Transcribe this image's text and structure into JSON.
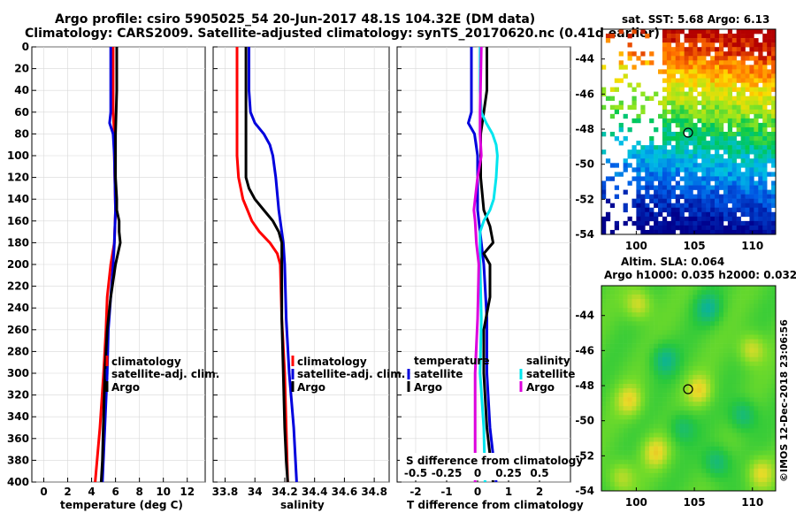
{
  "title": {
    "line1": "Argo profile: csiro 5905025_54 20-Jun-2017 48.1S 104.32E (DM data)",
    "line2": "Climatology: CARS2009. Satellite-adjusted climatology: synTS_20170620.nc (0.41d earlier)"
  },
  "colors": {
    "climatology": "#ff0000",
    "satellite": "#0000dd",
    "argo": "#000000",
    "sat_salinity": "#00e5ee",
    "argo_salinity": "#dd00dd"
  },
  "chart_data": [
    {
      "type": "line",
      "id": "temperature",
      "xlabel": "temperature (deg C)",
      "ylabel": "depth",
      "xlim": [
        -1,
        13.5
      ],
      "ylim": [
        400,
        0
      ],
      "xticks": [
        "0",
        "2",
        "4",
        "6",
        "8",
        "10",
        "12"
      ],
      "xtick_values": [
        0,
        2,
        4,
        6,
        8,
        10,
        12
      ],
      "yticks": [
        "0",
        "20",
        "40",
        "60",
        "80",
        "100",
        "120",
        "140",
        "160",
        "180",
        "200",
        "220",
        "240",
        "260",
        "280",
        "300",
        "320",
        "340",
        "360",
        "380",
        "400"
      ],
      "legend": [
        "climatology",
        "satellite-adj. clim.",
        "Argo"
      ],
      "series": [
        {
          "name": "climatology",
          "color": "#ff0000",
          "depth": [
            0,
            60,
            80,
            100,
            150,
            180,
            200,
            230,
            260,
            300,
            350,
            400
          ],
          "values": [
            5.8,
            5.8,
            5.9,
            5.9,
            6.0,
            5.9,
            5.6,
            5.3,
            5.2,
            5.0,
            4.7,
            4.3
          ]
        },
        {
          "name": "satellite-adj. clim.",
          "color": "#0000dd",
          "depth": [
            0,
            20,
            60,
            70,
            80,
            100,
            150,
            180,
            200,
            230,
            260,
            300,
            350,
            400
          ],
          "values": [
            5.6,
            5.6,
            5.6,
            5.5,
            5.8,
            5.9,
            6.0,
            5.9,
            5.8,
            5.6,
            5.4,
            5.3,
            5.1,
            4.9
          ]
        },
        {
          "name": "Argo",
          "color": "#000000",
          "depth": [
            0,
            40,
            80,
            120,
            140,
            150,
            160,
            170,
            180,
            190,
            200,
            230,
            260,
            300,
            340,
            380,
            400
          ],
          "values": [
            6.1,
            6.1,
            6.0,
            6.0,
            6.1,
            6.1,
            6.3,
            6.3,
            6.4,
            6.2,
            6.0,
            5.6,
            5.3,
            5.1,
            5.0,
            4.9,
            4.8
          ]
        }
      ]
    },
    {
      "type": "line",
      "id": "salinity",
      "xlabel": "salinity",
      "ylabel": "depth",
      "xlim": [
        33.72,
        34.9
      ],
      "ylim": [
        400,
        0
      ],
      "xticks": [
        "33.8",
        "34",
        "34.2",
        "34.4",
        "34.6",
        "34.8"
      ],
      "xtick_values": [
        33.8,
        34.0,
        34.2,
        34.4,
        34.6,
        34.8
      ],
      "legend": [
        "climatology",
        "satellite-adj. clim.",
        "Argo"
      ],
      "series": [
        {
          "name": "climatology",
          "color": "#ff0000",
          "depth": [
            0,
            60,
            80,
            100,
            120,
            140,
            150,
            160,
            170,
            180,
            190,
            200,
            250,
            300,
            350,
            400
          ],
          "values": [
            33.88,
            33.88,
            33.88,
            33.88,
            33.89,
            33.92,
            33.95,
            33.98,
            34.03,
            34.1,
            34.15,
            34.17,
            34.18,
            34.2,
            34.21,
            34.22
          ]
        },
        {
          "name": "satellite-adj. clim.",
          "color": "#0000dd",
          "depth": [
            0,
            40,
            60,
            70,
            80,
            90,
            100,
            120,
            150,
            170,
            180,
            200,
            250,
            300,
            350,
            400
          ],
          "values": [
            33.96,
            33.96,
            33.97,
            34.0,
            34.06,
            34.1,
            34.12,
            34.14,
            34.16,
            34.18,
            34.19,
            34.2,
            34.21,
            34.23,
            34.26,
            34.28
          ]
        },
        {
          "name": "Argo",
          "color": "#000000",
          "depth": [
            0,
            100,
            120,
            130,
            140,
            150,
            160,
            170,
            180,
            200,
            250,
            300,
            350,
            380,
            400
          ],
          "values": [
            33.94,
            33.94,
            33.94,
            33.96,
            34.0,
            34.06,
            34.12,
            34.16,
            34.18,
            34.18,
            34.18,
            34.19,
            34.2,
            34.21,
            34.22
          ]
        }
      ]
    },
    {
      "type": "line",
      "id": "difference",
      "xlabel": "T difference from climatology",
      "xlabel_top": "S difference from climatology",
      "ylabel": "depth",
      "xlim": [
        -2.6,
        3.0
      ],
      "ylim": [
        400,
        0
      ],
      "xticks": [
        "-2",
        "-1",
        "0",
        "1",
        "2"
      ],
      "xtick_values": [
        -2,
        -1,
        0,
        1,
        2
      ],
      "top_ticks": [
        "-0.5",
        "-0.25",
        "0",
        "0.25",
        "0.5"
      ],
      "legend_temperature": {
        "title": "temperature",
        "items": [
          "satellite",
          "Argo"
        ]
      },
      "legend_salinity": {
        "title": "salinity",
        "items": [
          "satellite",
          "Argo"
        ]
      },
      "series": [
        {
          "name": "temperature satellite",
          "color": "#0000dd",
          "depth": [
            0,
            20,
            40,
            60,
            70,
            80,
            100,
            150,
            200,
            250,
            300,
            350,
            400
          ],
          "values": [
            -0.2,
            -0.2,
            -0.2,
            -0.2,
            -0.3,
            -0.1,
            0.0,
            0.0,
            0.2,
            0.3,
            0.3,
            0.4,
            0.6
          ]
        },
        {
          "name": "temperature Argo",
          "color": "#000000",
          "depth": [
            0,
            40,
            80,
            120,
            150,
            165,
            180,
            190,
            200,
            230,
            260,
            300,
            350,
            400
          ],
          "values": [
            0.3,
            0.3,
            0.1,
            0.1,
            0.2,
            0.4,
            0.5,
            0.2,
            0.4,
            0.4,
            0.2,
            0.2,
            0.3,
            0.5
          ]
        },
        {
          "name": "salinity satellite",
          "color": "#00e5ee",
          "depth": [
            0,
            40,
            60,
            70,
            80,
            90,
            100,
            120,
            140,
            150,
            160,
            170,
            180,
            200,
            250,
            300,
            350,
            400
          ],
          "values": [
            0.02,
            0.02,
            0.03,
            0.07,
            0.12,
            0.15,
            0.16,
            0.15,
            0.13,
            0.1,
            0.05,
            0.02,
            0.02,
            0.02,
            0.03,
            0.02,
            0.05,
            0.06
          ]
        },
        {
          "name": "salinity Argo",
          "color": "#dd00dd",
          "depth": [
            0,
            60,
            80,
            100,
            120,
            140,
            150,
            160,
            180,
            200,
            250,
            300,
            350,
            400
          ],
          "values": [
            0.03,
            0.02,
            0.02,
            0.03,
            0.0,
            -0.02,
            -0.03,
            -0.02,
            -0.01,
            0.01,
            0.0,
            -0.02,
            -0.02,
            -0.02
          ]
        }
      ]
    }
  ],
  "sst_map": {
    "title": "sat. SST: 5.68 Argo: 6.13",
    "yticks": [
      "-44",
      "-46",
      "-48",
      "-50",
      "-52",
      "-54"
    ],
    "xticks": [
      "100",
      "105",
      "110"
    ],
    "lat_range": [
      -54,
      -42.3
    ],
    "lon_range": [
      97,
      112
    ]
  },
  "sla_map": {
    "title_line1": "Altim. SLA: 0.064",
    "title_line2": "Argo h1000: 0.035 h2000: 0.032",
    "yticks": [
      "-44",
      "-46",
      "-48",
      "-50",
      "-52",
      "-54"
    ],
    "xticks": [
      "100",
      "105",
      "110"
    ],
    "lat_range": [
      -54,
      -42.3
    ],
    "lon_range": [
      97,
      112
    ]
  },
  "argo_position": {
    "lon": 104.32,
    "lat": -48.1
  },
  "footer_stamp": "©IMOS 12-Dec-2018 23:06:56"
}
